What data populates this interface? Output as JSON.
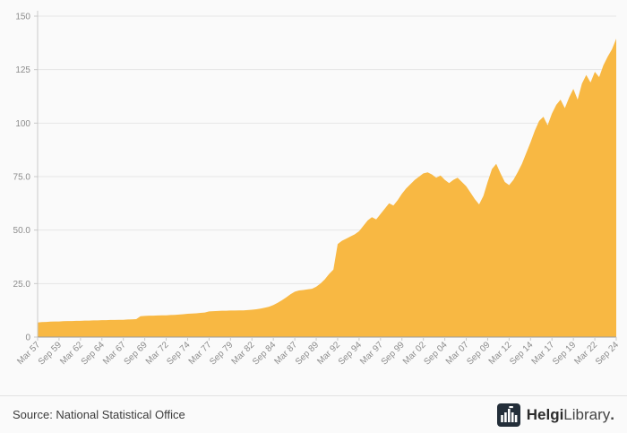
{
  "footer": {
    "source": "Source: National Statistical Office",
    "logo_text_bold": "Helgi",
    "logo_text_regular": "Library",
    "logo_dot": "."
  },
  "colors": {
    "background": "#fafafa",
    "area_fill": "#F8B843",
    "grid": "#e6e6e6",
    "axis": "#c9c9c9",
    "axis_dark": "#9a9a9a",
    "tick_text": "#8c8c8c",
    "logo_dark": "#232e39"
  },
  "chart_data": {
    "type": "area",
    "title": "",
    "xlabel": "",
    "ylabel": "",
    "ylim": [
      0,
      150
    ],
    "grid": true,
    "legend": "none",
    "x_tick_every": 5,
    "x_tick_labels": [
      "Mar 57",
      "Sep 59",
      "Mar 62",
      "Sep 64",
      "Mar 67",
      "Sep 69",
      "Mar 72",
      "Sep 74",
      "Mar 77",
      "Sep 79",
      "Mar 82",
      "Sep 84",
      "Mar 87",
      "Sep 89",
      "Mar 92",
      "Sep 94",
      "Mar 97",
      "Sep 99",
      "Mar 02",
      "Sep 04",
      "Mar 07",
      "Sep 09",
      "Mar 12",
      "Sep 14",
      "Mar 17",
      "Sep 19",
      "Mar 22",
      "Sep 24"
    ],
    "y_ticks": [
      {
        "value": 0,
        "label": "0"
      },
      {
        "value": 25,
        "label": "25.0"
      },
      {
        "value": 50,
        "label": "50.0"
      },
      {
        "value": 75,
        "label": "75.0"
      },
      {
        "value": 100,
        "label": "100"
      },
      {
        "value": 125,
        "label": "125"
      },
      {
        "value": 150,
        "label": "150"
      }
    ],
    "values": [
      6.8,
      7.0,
      7.1,
      7.2,
      7.3,
      7.3,
      7.4,
      7.5,
      7.5,
      7.6,
      7.6,
      7.7,
      7.7,
      7.8,
      7.8,
      7.9,
      7.9,
      8.0,
      8.0,
      8.1,
      8.1,
      8.2,
      8.3,
      8.4,
      9.7,
      9.9,
      10.0,
      10.0,
      10.1,
      10.2,
      10.2,
      10.3,
      10.4,
      10.5,
      10.7,
      10.9,
      11.0,
      11.1,
      11.3,
      11.5,
      12.0,
      12.1,
      12.2,
      12.3,
      12.3,
      12.4,
      12.4,
      12.5,
      12.5,
      12.6,
      12.8,
      13.0,
      13.3,
      13.7,
      14.2,
      15.0,
      16.0,
      17.2,
      18.5,
      20.0,
      21.2,
      21.8,
      22.0,
      22.3,
      22.6,
      23.5,
      25.0,
      27.0,
      29.5,
      31.5,
      43.5,
      45.0,
      46.0,
      47.0,
      48.0,
      49.5,
      52.0,
      54.5,
      56.0,
      55.0,
      57.5,
      60.0,
      62.5,
      61.5,
      64.0,
      67.0,
      69.5,
      71.5,
      73.5,
      75.0,
      76.5,
      77.0,
      76.0,
      74.5,
      75.5,
      73.5,
      72.0,
      73.5,
      74.5,
      72.5,
      70.5,
      67.5,
      64.5,
      62.0,
      66.0,
      72.5,
      78.5,
      81.0,
      76.5,
      72.5,
      71.0,
      73.5,
      77.0,
      81.0,
      86.0,
      91.0,
      96.5,
      101.0,
      103.0,
      99.0,
      104.5,
      108.5,
      111.0,
      107.0,
      112.0,
      116.0,
      111.0,
      118.5,
      122.5,
      119.0,
      124.0,
      121.5,
      127.0,
      131.0,
      134.5,
      139.5
    ]
  }
}
